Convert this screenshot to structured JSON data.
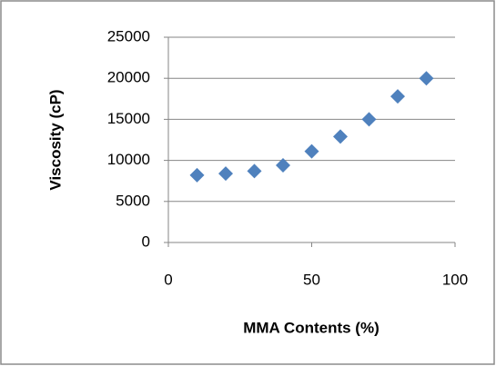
{
  "chart_data": {
    "type": "scatter",
    "x_label": "MMA Contents (%)",
    "y_label": "Viscosity (cP)",
    "series": [
      {
        "color": "#4f81bd",
        "x": [
          10,
          20,
          30,
          40,
          50,
          60,
          70,
          80,
          90
        ],
        "values": [
          8200,
          8400,
          8700,
          9400,
          11100,
          12900,
          15000,
          17800,
          20000
        ]
      }
    ],
    "xlim": [
      0,
      100
    ],
    "xticks": [
      0,
      50,
      100
    ],
    "ylim": [
      0,
      25000
    ],
    "yticks": [
      0,
      5000,
      10000,
      15000,
      20000,
      25000
    ],
    "grid": true
  }
}
